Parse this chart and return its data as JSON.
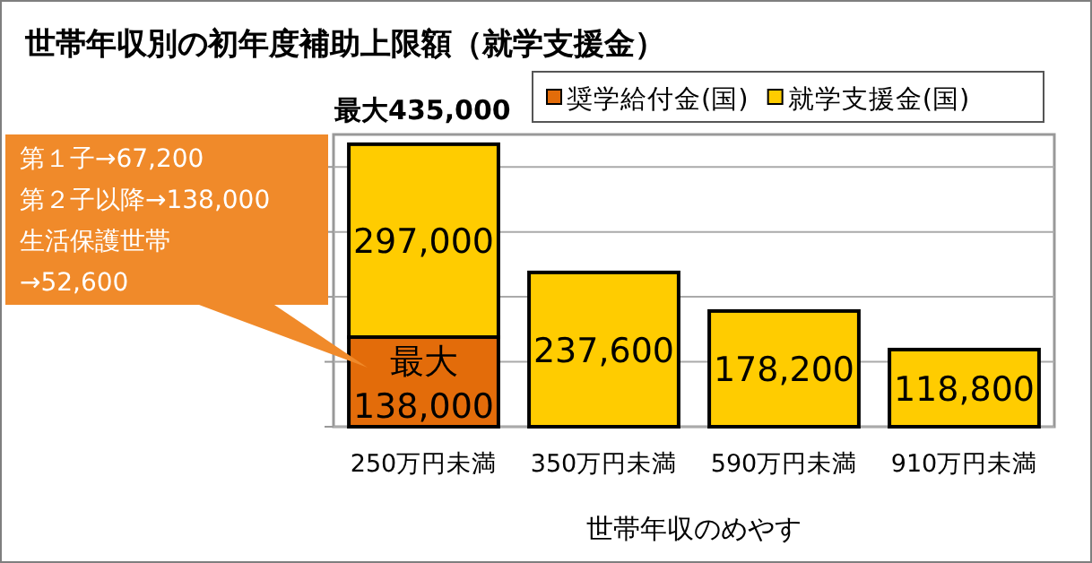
{
  "chart_data": {
    "type": "bar",
    "title": "世帯年収別の初年度補助上限額（就学支援金）",
    "xlabel": "世帯年収のめやす",
    "categories": [
      "250万円未満",
      "350万円未満",
      "590万円未満",
      "910万円未満"
    ],
    "stacked": true,
    "series": [
      {
        "name": "奨学給付金(国)",
        "color": "#e36c0a",
        "values": [
          138000,
          null,
          null,
          null
        ],
        "value_labels": [
          "最大\n138,000",
          null,
          null,
          null
        ]
      },
      {
        "name": "就学支援金(国)",
        "color": "#ffcc00",
        "values": [
          297000,
          237600,
          178200,
          118800
        ],
        "value_labels": [
          "297,000",
          "237,600",
          "178,200",
          "118,800"
        ]
      }
    ],
    "ylim": [
      0,
      450000
    ],
    "yticks": [
      {
        "value": 0,
        "label": null
      },
      {
        "value": 100000,
        "label": null
      },
      {
        "value": 200000,
        "label": null
      },
      {
        "value": 300000,
        "label": null
      },
      {
        "value": 400000,
        "label": null
      }
    ],
    "tick_labels": "x",
    "grid": "y",
    "legend": "top",
    "annotations": [
      {
        "text": "最大435,000",
        "x": "250万円未満",
        "y": 435000
      },
      "第１子→67,200\n第２子以降→138,000\n生活保護世帯\n→52,600"
    ]
  }
}
